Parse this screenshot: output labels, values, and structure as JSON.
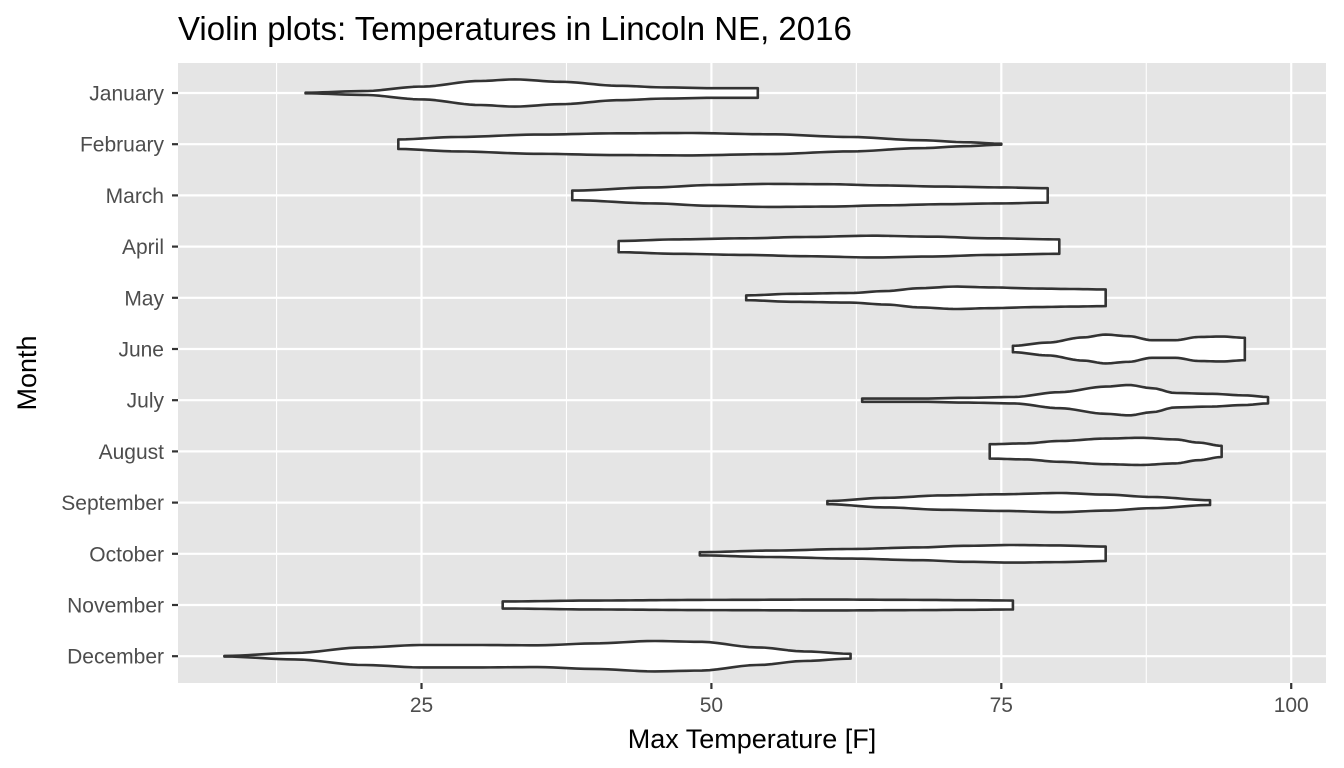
{
  "chart_data": {
    "type": "violin",
    "title": "Violin plots: Temperatures in Lincoln NE, 2016",
    "xlabel": "Max Temperature [F]",
    "ylabel": "Month",
    "xlim": [
      4,
      103
    ],
    "x_ticks": [
      25,
      50,
      75,
      100
    ],
    "x_minor": [
      12.5,
      37.5,
      62.5,
      87.5
    ],
    "grid": true,
    "legend": "none",
    "colors": {
      "panel": "#e5e5e5",
      "grid": "#ffffff",
      "fill": "#ffffff",
      "outline": "#333333"
    },
    "categories": [
      "January",
      "February",
      "March",
      "April",
      "May",
      "June",
      "July",
      "August",
      "September",
      "October",
      "November",
      "December"
    ],
    "series": [
      {
        "month": "January",
        "min": 15,
        "max": 54,
        "density": [
          [
            15,
            0.02
          ],
          [
            20,
            0.12
          ],
          [
            25,
            0.4
          ],
          [
            30,
            0.75
          ],
          [
            33,
            0.85
          ],
          [
            37,
            0.7
          ],
          [
            42,
            0.45
          ],
          [
            46,
            0.35
          ],
          [
            50,
            0.3
          ],
          [
            54,
            0.3
          ]
        ]
      },
      {
        "month": "February",
        "min": 23,
        "max": 75,
        "density": [
          [
            23,
            0.3
          ],
          [
            28,
            0.45
          ],
          [
            35,
            0.6
          ],
          [
            42,
            0.68
          ],
          [
            48,
            0.7
          ],
          [
            55,
            0.62
          ],
          [
            62,
            0.45
          ],
          [
            68,
            0.25
          ],
          [
            72,
            0.12
          ],
          [
            75,
            0.03
          ]
        ]
      },
      {
        "month": "March",
        "min": 38,
        "max": 79,
        "density": [
          [
            38,
            0.3
          ],
          [
            45,
            0.5
          ],
          [
            50,
            0.65
          ],
          [
            55,
            0.72
          ],
          [
            60,
            0.7
          ],
          [
            65,
            0.62
          ],
          [
            70,
            0.55
          ],
          [
            75,
            0.5
          ],
          [
            79,
            0.45
          ]
        ]
      },
      {
        "month": "April",
        "min": 42,
        "max": 80,
        "density": [
          [
            42,
            0.35
          ],
          [
            47,
            0.45
          ],
          [
            53,
            0.52
          ],
          [
            58,
            0.6
          ],
          [
            64,
            0.68
          ],
          [
            69,
            0.62
          ],
          [
            74,
            0.52
          ],
          [
            80,
            0.45
          ]
        ]
      },
      {
        "month": "May",
        "min": 53,
        "max": 84,
        "density": [
          [
            53,
            0.15
          ],
          [
            57,
            0.25
          ],
          [
            62,
            0.3
          ],
          [
            65,
            0.42
          ],
          [
            68,
            0.6
          ],
          [
            71,
            0.7
          ],
          [
            74,
            0.65
          ],
          [
            78,
            0.58
          ],
          [
            81,
            0.55
          ],
          [
            84,
            0.52
          ]
        ]
      },
      {
        "month": "June",
        "min": 76,
        "max": 96,
        "density": [
          [
            76,
            0.2
          ],
          [
            79,
            0.4
          ],
          [
            82,
            0.72
          ],
          [
            84,
            0.9
          ],
          [
            86,
            0.8
          ],
          [
            88,
            0.55
          ],
          [
            90,
            0.55
          ],
          [
            92,
            0.75
          ],
          [
            94,
            0.78
          ],
          [
            96,
            0.7
          ]
        ]
      },
      {
        "month": "July",
        "min": 63,
        "max": 98,
        "density": [
          [
            63,
            0.1
          ],
          [
            68,
            0.1
          ],
          [
            72,
            0.15
          ],
          [
            76,
            0.2
          ],
          [
            80,
            0.5
          ],
          [
            84,
            0.85
          ],
          [
            86,
            0.95
          ],
          [
            88,
            0.75
          ],
          [
            90,
            0.45
          ],
          [
            93,
            0.4
          ],
          [
            96,
            0.3
          ],
          [
            98,
            0.2
          ]
        ]
      },
      {
        "month": "August",
        "min": 74,
        "max": 94,
        "density": [
          [
            74,
            0.45
          ],
          [
            77,
            0.5
          ],
          [
            80,
            0.65
          ],
          [
            84,
            0.8
          ],
          [
            87,
            0.85
          ],
          [
            90,
            0.75
          ],
          [
            92,
            0.55
          ],
          [
            94,
            0.35
          ]
        ]
      },
      {
        "month": "September",
        "min": 60,
        "max": 93,
        "density": [
          [
            60,
            0.1
          ],
          [
            65,
            0.3
          ],
          [
            70,
            0.45
          ],
          [
            75,
            0.52
          ],
          [
            80,
            0.6
          ],
          [
            84,
            0.5
          ],
          [
            88,
            0.35
          ],
          [
            93,
            0.15
          ]
        ]
      },
      {
        "month": "October",
        "min": 49,
        "max": 84,
        "density": [
          [
            49,
            0.1
          ],
          [
            55,
            0.2
          ],
          [
            62,
            0.3
          ],
          [
            68,
            0.4
          ],
          [
            72,
            0.5
          ],
          [
            76,
            0.55
          ],
          [
            80,
            0.52
          ],
          [
            84,
            0.45
          ]
        ]
      },
      {
        "month": "November",
        "min": 32,
        "max": 76,
        "density": [
          [
            32,
            0.22
          ],
          [
            40,
            0.28
          ],
          [
            50,
            0.32
          ],
          [
            60,
            0.34
          ],
          [
            68,
            0.32
          ],
          [
            72,
            0.3
          ],
          [
            76,
            0.28
          ]
        ]
      },
      {
        "month": "December",
        "min": 8,
        "max": 62,
        "density": [
          [
            8,
            0.02
          ],
          [
            14,
            0.2
          ],
          [
            20,
            0.55
          ],
          [
            25,
            0.7
          ],
          [
            30,
            0.7
          ],
          [
            35,
            0.68
          ],
          [
            40,
            0.8
          ],
          [
            45,
            0.95
          ],
          [
            49,
            0.9
          ],
          [
            54,
            0.55
          ],
          [
            58,
            0.3
          ],
          [
            62,
            0.15
          ]
        ]
      }
    ]
  }
}
